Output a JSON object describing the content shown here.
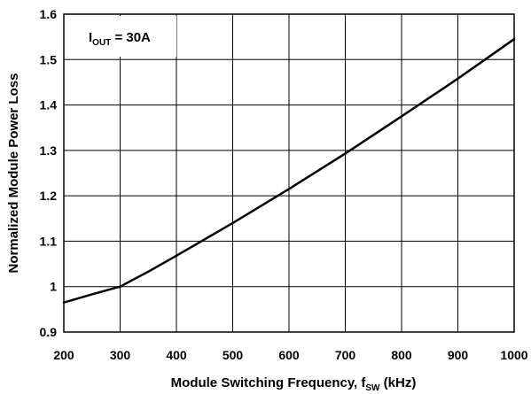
{
  "chart_data": {
    "type": "line",
    "title": "",
    "xlabel": {
      "main": "Module Switching Frequency, f",
      "sub": "SW",
      "suffix": " (kHz)"
    },
    "ylabel": "Normalized Module Power Loss",
    "xlim": [
      200,
      1000
    ],
    "ylim": [
      0.9,
      1.6
    ],
    "xticks": [
      "200",
      "300",
      "400",
      "500",
      "600",
      "700",
      "800",
      "900",
      "1000"
    ],
    "yticks": [
      "0.9",
      "1",
      "1.1",
      "1.2",
      "1.3",
      "1.4",
      "1.5",
      "1.6"
    ],
    "grid": true,
    "annotation": {
      "main": "I",
      "sub": "OUT",
      "suffix": " = 30A"
    },
    "series": [
      {
        "color": "#000000",
        "x": [
          200,
          250,
          300,
          350,
          400,
          500,
          600,
          700,
          800,
          900,
          1000
        ],
        "y": [
          0.965,
          0.983,
          1.0,
          1.033,
          1.068,
          1.14,
          1.215,
          1.293,
          1.375,
          1.458,
          1.545
        ]
      }
    ]
  }
}
